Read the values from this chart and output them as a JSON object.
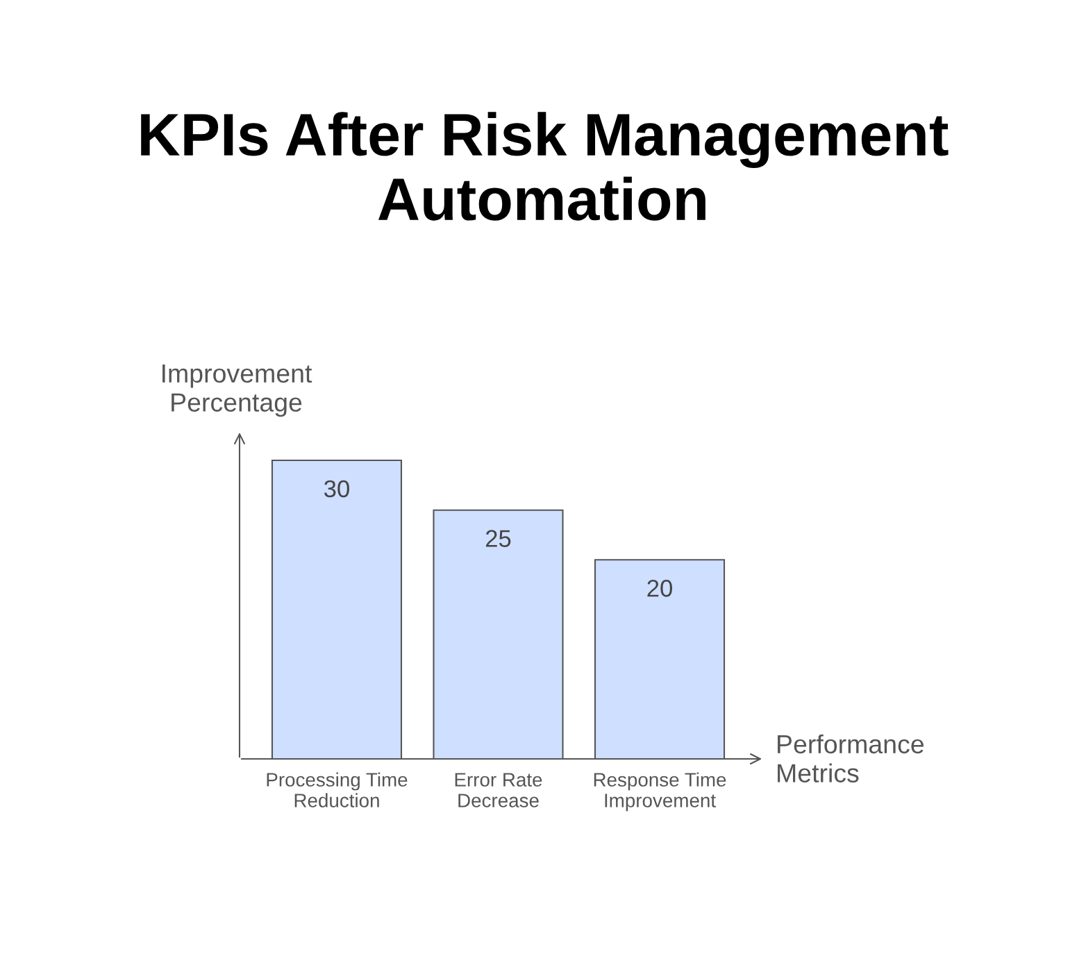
{
  "chart_data": {
    "type": "bar",
    "title": "KPIs After Risk Management\nAutomation",
    "xlabel": "Performance\nMetrics",
    "ylabel": "Improvement\nPercentage",
    "categories": [
      "Processing Time\nReduction",
      "Error Rate\nDecrease",
      "Response Time\nImprovement"
    ],
    "values": [
      30,
      25,
      20
    ],
    "color": "#cfdfff",
    "data_labels": true,
    "grid": false,
    "legend": false,
    "tick_labels": "x"
  }
}
